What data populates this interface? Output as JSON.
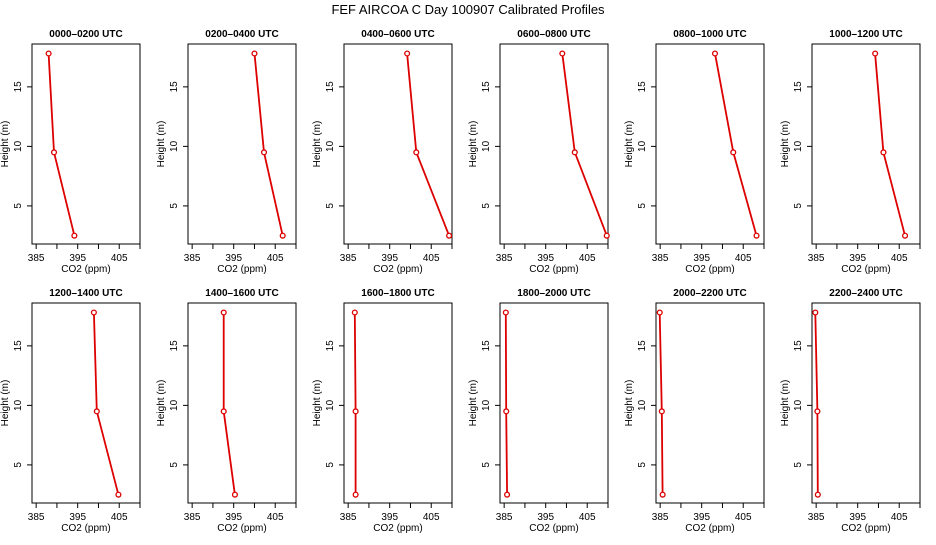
{
  "figure": {
    "title": "FEF AIRCOA C  Day 100907  Calibrated Profiles"
  },
  "colors": {
    "profile_line": "#dd0000",
    "axis": "#000000",
    "background": "#ffffff"
  },
  "chart_data": [
    {
      "type": "line",
      "title": "0000–0200 UTC",
      "xlabel": "CO2 (ppm)",
      "ylabel": "Height (m)",
      "xlim": [
        384,
        410
      ],
      "ylim": [
        1.8,
        18.6
      ],
      "xticks": [
        "385",
        "395",
        "405"
      ],
      "yticks": [
        "5",
        "10",
        "15"
      ],
      "grid": false,
      "series": [
        {
          "x": [
            388.0,
            389.3,
            394.2
          ],
          "y": [
            17.8,
            9.5,
            2.5
          ]
        }
      ]
    },
    {
      "type": "line",
      "title": "0200–0400 UTC",
      "xlabel": "CO2 (ppm)",
      "ylabel": "Height (m)",
      "xlim": [
        384,
        410
      ],
      "ylim": [
        1.8,
        18.6
      ],
      "xticks": [
        "385",
        "395",
        "405"
      ],
      "yticks": [
        "5",
        "10",
        "15"
      ],
      "grid": false,
      "series": [
        {
          "x": [
            400.0,
            402.3,
            406.8
          ],
          "y": [
            17.8,
            9.5,
            2.5
          ]
        }
      ]
    },
    {
      "type": "line",
      "title": "0400–0600 UTC",
      "xlabel": "CO2 (ppm)",
      "ylabel": "Height (m)",
      "xlim": [
        384,
        410
      ],
      "ylim": [
        1.8,
        18.6
      ],
      "xticks": [
        "385",
        "395",
        "405"
      ],
      "yticks": [
        "5",
        "10",
        "15"
      ],
      "grid": false,
      "series": [
        {
          "x": [
            399.2,
            401.4,
            409.3
          ],
          "y": [
            17.8,
            9.5,
            2.5
          ]
        }
      ]
    },
    {
      "type": "line",
      "title": "0600–0800 UTC",
      "xlabel": "CO2 (ppm)",
      "ylabel": "Height (m)",
      "xlim": [
        384,
        410
      ],
      "ylim": [
        1.8,
        18.6
      ],
      "xticks": [
        "385",
        "395",
        "405"
      ],
      "yticks": [
        "5",
        "10",
        "15"
      ],
      "grid": false,
      "series": [
        {
          "x": [
            399.0,
            402.0,
            409.7
          ],
          "y": [
            17.8,
            9.5,
            2.5
          ]
        }
      ]
    },
    {
      "type": "line",
      "title": "0800–1000 UTC",
      "xlabel": "CO2 (ppm)",
      "ylabel": "Height (m)",
      "xlim": [
        384,
        410
      ],
      "ylim": [
        1.8,
        18.6
      ],
      "xticks": [
        "385",
        "395",
        "405"
      ],
      "yticks": [
        "5",
        "10",
        "15"
      ],
      "grid": false,
      "series": [
        {
          "x": [
            398.2,
            402.6,
            408.2
          ],
          "y": [
            17.8,
            9.5,
            2.5
          ]
        }
      ]
    },
    {
      "type": "line",
      "title": "1000–1200 UTC",
      "xlabel": "CO2 (ppm)",
      "ylabel": "Height (m)",
      "xlim": [
        384,
        410
      ],
      "ylim": [
        1.8,
        18.6
      ],
      "xticks": [
        "385",
        "395",
        "405"
      ],
      "yticks": [
        "5",
        "10",
        "15"
      ],
      "grid": false,
      "series": [
        {
          "x": [
            399.2,
            401.2,
            406.4
          ],
          "y": [
            17.8,
            9.5,
            2.5
          ]
        }
      ]
    },
    {
      "type": "line",
      "title": "1200–1400 UTC",
      "xlabel": "CO2 (ppm)",
      "ylabel": "Height (m)",
      "xlim": [
        384,
        410
      ],
      "ylim": [
        1.8,
        18.6
      ],
      "xticks": [
        "385",
        "395",
        "405"
      ],
      "yticks": [
        "5",
        "10",
        "15"
      ],
      "grid": false,
      "series": [
        {
          "x": [
            398.9,
            399.6,
            404.8
          ],
          "y": [
            17.8,
            9.5,
            2.5
          ]
        }
      ]
    },
    {
      "type": "line",
      "title": "1400–1600 UTC",
      "xlabel": "CO2 (ppm)",
      "ylabel": "Height (m)",
      "xlim": [
        384,
        410
      ],
      "ylim": [
        1.8,
        18.6
      ],
      "xticks": [
        "385",
        "395",
        "405"
      ],
      "yticks": [
        "5",
        "10",
        "15"
      ],
      "grid": false,
      "series": [
        {
          "x": [
            392.6,
            392.6,
            395.3
          ],
          "y": [
            17.8,
            9.5,
            2.5
          ]
        }
      ]
    },
    {
      "type": "line",
      "title": "1600–1800 UTC",
      "xlabel": "CO2 (ppm)",
      "ylabel": "Height (m)",
      "xlim": [
        384,
        410
      ],
      "ylim": [
        1.8,
        18.6
      ],
      "xticks": [
        "385",
        "395",
        "405"
      ],
      "yticks": [
        "5",
        "10",
        "15"
      ],
      "grid": false,
      "series": [
        {
          "x": [
            386.6,
            386.8,
            386.8
          ],
          "y": [
            17.8,
            9.5,
            2.5
          ]
        }
      ]
    },
    {
      "type": "line",
      "title": "1800–2000 UTC",
      "xlabel": "CO2 (ppm)",
      "ylabel": "Height (m)",
      "xlim": [
        384,
        410
      ],
      "ylim": [
        1.8,
        18.6
      ],
      "xticks": [
        "385",
        "395",
        "405"
      ],
      "yticks": [
        "5",
        "10",
        "15"
      ],
      "grid": false,
      "series": [
        {
          "x": [
            385.4,
            385.5,
            385.7
          ],
          "y": [
            17.8,
            9.5,
            2.5
          ]
        }
      ]
    },
    {
      "type": "line",
      "title": "2000–2200 UTC",
      "xlabel": "CO2 (ppm)",
      "ylabel": "Height (m)",
      "xlim": [
        384,
        410
      ],
      "ylim": [
        1.8,
        18.6
      ],
      "xticks": [
        "385",
        "395",
        "405"
      ],
      "yticks": [
        "5",
        "10",
        "15"
      ],
      "grid": false,
      "series": [
        {
          "x": [
            384.9,
            385.4,
            385.6
          ],
          "y": [
            17.8,
            9.5,
            2.5
          ]
        }
      ]
    },
    {
      "type": "line",
      "title": "2200–2400 UTC",
      "xlabel": "CO2 (ppm)",
      "ylabel": "Height (m)",
      "xlim": [
        384,
        410
      ],
      "ylim": [
        1.8,
        18.6
      ],
      "xticks": [
        "385",
        "395",
        "405"
      ],
      "yticks": [
        "5",
        "10",
        "15"
      ],
      "grid": false,
      "series": [
        {
          "x": [
            384.8,
            385.3,
            385.4
          ],
          "y": [
            17.8,
            9.5,
            2.5
          ]
        }
      ]
    }
  ]
}
